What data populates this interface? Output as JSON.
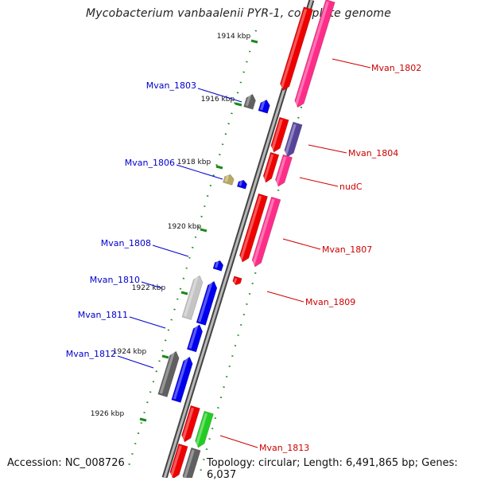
{
  "title": "Mycobacterium vanbaalenii PYR-1, complete genome",
  "accession": "Accession: NC_008726",
  "topology": "Topology: circular; Length: 6,491,865 bp; Genes: 6,037",
  "colors": {
    "reverse_red": "#ee0000",
    "forward_red": "#ff2d8a",
    "reverse_blue": "#0000ee",
    "gray": "#606060",
    "light_gray": "#c4c4c4",
    "olive": "#b8a860",
    "purple": "#55449a",
    "green": "#22cc22",
    "tick_green": "#1a8a1a",
    "label_red": "#cc0000",
    "label_blue": "#0000cc"
  },
  "ticks": [
    {
      "label": "1914 kbp"
    },
    {
      "label": "1916 kbp"
    },
    {
      "label": "1918 kbp"
    },
    {
      "label": "1920 kbp"
    },
    {
      "label": "1922 kbp"
    },
    {
      "label": "1924 kbp"
    },
    {
      "label": "1926 kbp"
    }
  ],
  "gene_labels": [
    {
      "name": "Mvan_1802",
      "strand": "right"
    },
    {
      "name": "Mvan_1803",
      "strand": "left"
    },
    {
      "name": "Mvan_1804",
      "strand": "right"
    },
    {
      "name": "Mvan_1806",
      "strand": "left"
    },
    {
      "name": "nudC",
      "strand": "right"
    },
    {
      "name": "Mvan_1807",
      "strand": "right"
    },
    {
      "name": "Mvan_1808",
      "strand": "left"
    },
    {
      "name": "Mvan_1810",
      "strand": "left"
    },
    {
      "name": "Mvan_1809",
      "strand": "right"
    },
    {
      "name": "Mvan_1811",
      "strand": "left"
    },
    {
      "name": "Mvan_1812",
      "strand": "left"
    },
    {
      "name": "Mvan_1813",
      "strand": "right"
    }
  ]
}
